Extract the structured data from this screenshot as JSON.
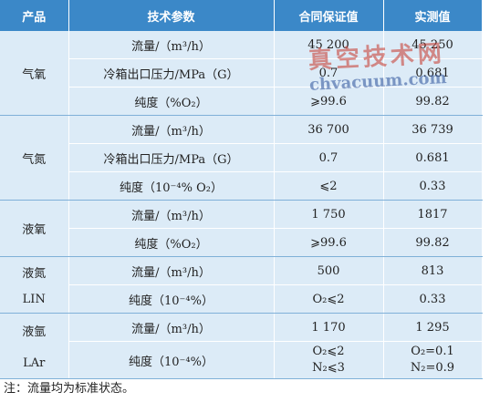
{
  "table": {
    "header": [
      "产品",
      "技术参数",
      "合同保证值",
      "实测值"
    ],
    "groups": [
      {
        "product": [
          "气氧"
        ],
        "rows": [
          [
            "流量/（m³/h）",
            "45 200",
            "45 250"
          ],
          [
            "冷箱出口压力/MPa（G）",
            "0.7",
            "0.681"
          ],
          [
            "纯度（%O₂）",
            "⩾99.6",
            "99.82"
          ]
        ]
      },
      {
        "product": [
          "气氮"
        ],
        "rows": [
          [
            "流量/（m³/h）",
            "36 700",
            "36 739"
          ],
          [
            "冷箱出口压力/MPa（G）",
            "0.7",
            "0.681"
          ],
          [
            "纯度（10⁻⁴% O₂）",
            "⩽2",
            "0.33"
          ]
        ]
      },
      {
        "product": [
          "液氧"
        ],
        "rows": [
          [
            "流量/（m³/h）",
            "1 750",
            "1817"
          ],
          [
            "纯度（%O₂）",
            "⩾99.6",
            "99.82"
          ]
        ]
      },
      {
        "product": [
          "液氮",
          "LIN"
        ],
        "rows": [
          [
            "流量/（m³/h）",
            "500",
            "813"
          ],
          [
            "纯度（10⁻⁴%）",
            "O₂⩽2",
            "0.33"
          ]
        ]
      },
      {
        "product": [
          "液氩",
          "LAr"
        ],
        "rows": [
          [
            "流量/（m³/h）",
            "1 170",
            "1 295"
          ],
          [
            "纯度（10⁻⁴%）",
            [
              "O₂⩽2",
              "N₂⩽3"
            ],
            [
              "O₂=0.1",
              "N₂=0.9"
            ]
          ]
        ]
      }
    ]
  },
  "note": "注：流量均为标准状态。",
  "watermark": [
    "真空技术网",
    "chvacuum.com"
  ]
}
